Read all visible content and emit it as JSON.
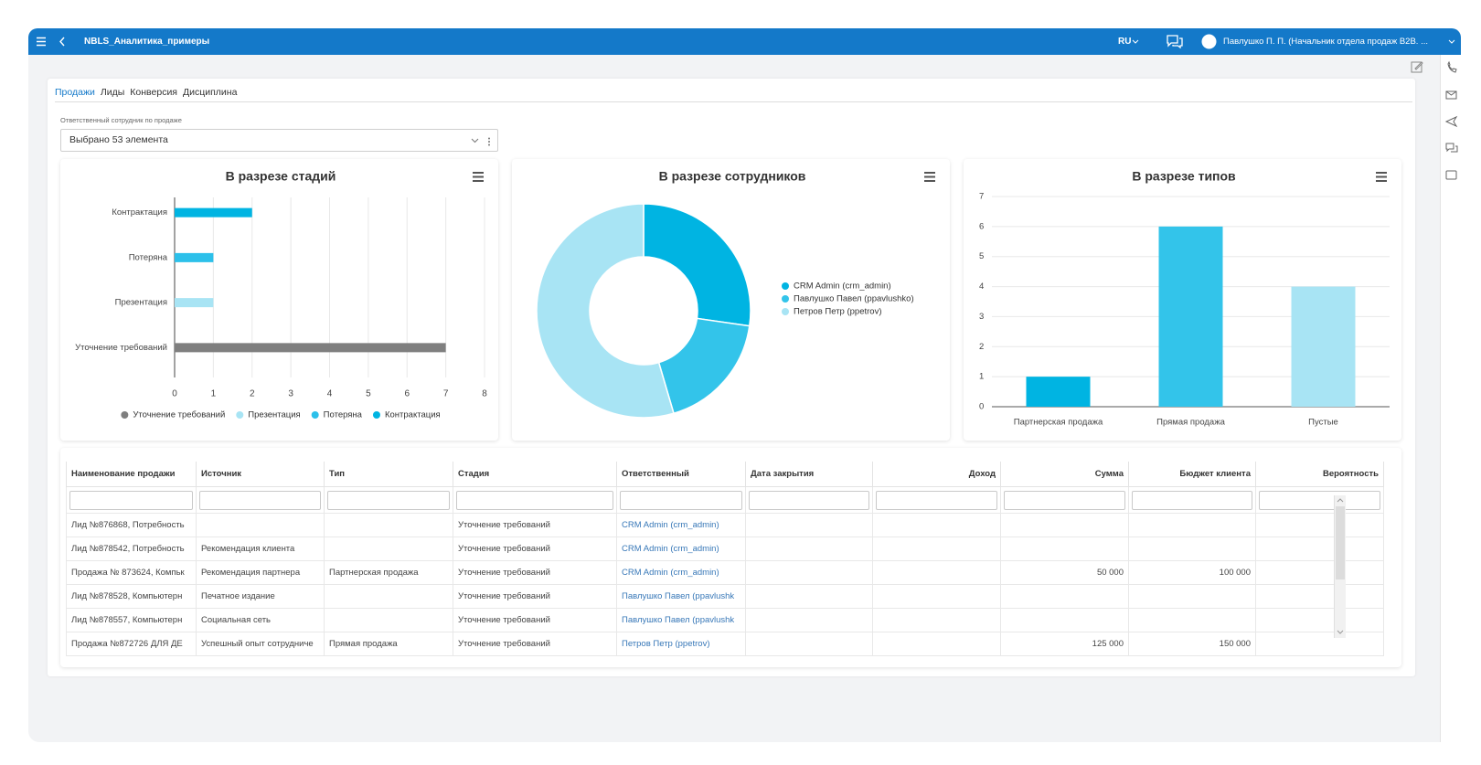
{
  "header": {
    "title": "NBLS_Аналитика_примеры",
    "language": "RU",
    "user": "Павлушко П. П. (Начальник отдела продаж B2B. ..."
  },
  "tabs": [
    "Продажи",
    "Лиды",
    "Конверсия",
    "Дисциплина"
  ],
  "filter": {
    "label": "Ответственный сотрудник по продаже",
    "value": "Выбрано 53 элемента"
  },
  "chart_data": [
    {
      "type": "barh",
      "title": "В разрезе стадий",
      "categories": [
        "Контрактация",
        "Потеряна",
        "Презентация",
        "Уточнение требований"
      ],
      "series": [
        {
          "name": "Уточнение требований",
          "color": "#7f7f7f",
          "values": [
            null,
            null,
            null,
            7
          ]
        },
        {
          "name": "Презентация",
          "color": "#a8e4f4",
          "values": [
            null,
            null,
            1,
            null
          ]
        },
        {
          "name": "Потеряна",
          "color": "#2cc0ea",
          "values": [
            null,
            1,
            null,
            null
          ]
        },
        {
          "name": "Контрактация",
          "color": "#00b4e2",
          "values": [
            2,
            null,
            null,
            null
          ]
        }
      ],
      "xlim": [
        0,
        8
      ],
      "xticks": [
        0,
        1,
        2,
        3,
        4,
        5,
        6,
        7,
        8
      ],
      "grid": true
    },
    {
      "type": "donut",
      "title": "В разрезе сотрудников",
      "categories": [
        "CRM Admin (crm_admin)",
        "Павлушко Павел (ppavlushko)",
        "Петров Петр (ppetrov)"
      ],
      "values": [
        3,
        2,
        6
      ],
      "colors": [
        "#00b4e2",
        "#33c4ea",
        "#a8e4f4"
      ]
    },
    {
      "type": "bar",
      "title": "В разрезе типов",
      "categories": [
        "Партнерская продажа",
        "Прямая продажа",
        "Пустые"
      ],
      "values": [
        1,
        6,
        4
      ],
      "colors": [
        "#00b4e2",
        "#33c4ea",
        "#a8e4f4"
      ],
      "ylim": [
        0,
        7
      ],
      "yticks": [
        0,
        1,
        2,
        3,
        4,
        5,
        6,
        7
      ],
      "grid": true
    }
  ],
  "table": {
    "columns": [
      "Наименование продажи",
      "Источник",
      "Тип",
      "Стадия",
      "Ответственный",
      "Дата закрытия",
      "Доход",
      "Сумма",
      "Бюджет клиента",
      "Вероятность"
    ],
    "rows": [
      [
        "Лид №876868, Потребность",
        null,
        null,
        "Уточнение требований",
        "CRM Admin  (crm_admin)",
        null,
        null,
        null,
        null,
        null
      ],
      [
        "Лид №878542, Потребность",
        "Рекомендация клиента",
        null,
        "Уточнение требований",
        "CRM Admin  (crm_admin)",
        null,
        null,
        null,
        null,
        null
      ],
      [
        "Продажа № 873624, Компьк",
        "Рекомендация партнера",
        "Партнерская продажа",
        "Уточнение требований",
        "CRM Admin  (crm_admin)",
        null,
        null,
        "50 000",
        "100 000",
        null
      ],
      [
        "Лид №878528, Компьютерн",
        "Печатное издание",
        null,
        "Уточнение требований",
        "Павлушко Павел (ppavlushk",
        null,
        null,
        null,
        null,
        null
      ],
      [
        "Лид №878557, Компьютерн",
        "Социальная сеть",
        null,
        "Уточнение требований",
        "Павлушко Павел (ppavlushk",
        null,
        null,
        null,
        null,
        null
      ],
      [
        "Продажа №872726 ДЛЯ ДЕ",
        "Успешный опыт сотрудниче",
        "Прямая продажа",
        "Уточнение требований",
        "Петров Петр (ppetrov)",
        null,
        null,
        "125 000",
        "150 000",
        null
      ]
    ]
  }
}
